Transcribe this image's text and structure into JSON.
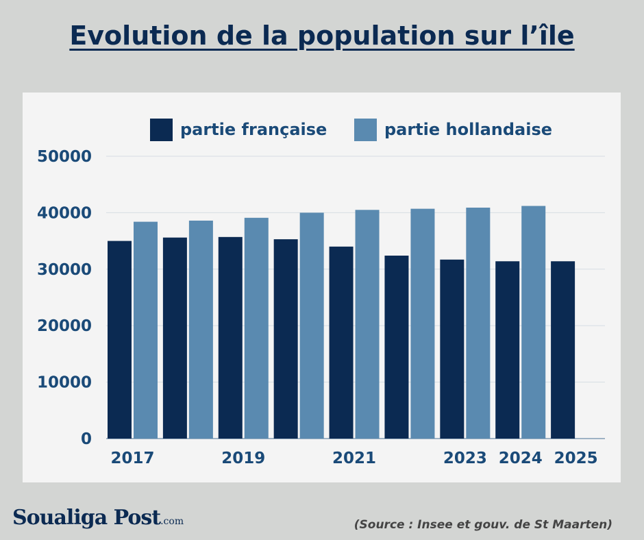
{
  "title": "Evolution de la population sur l’île",
  "source": "(Source : Insee et gouv. de St Maarten)",
  "logo": {
    "main": "Soualiga Post",
    "suffix": ".com"
  },
  "colors": {
    "background": "#d3d5d3",
    "panel": "#f4f4f4",
    "francaise": "#0b2a52",
    "hollandaise": "#5a8ab0",
    "text": "#1a4a78",
    "grid": "#d6dde3"
  },
  "chart_data": {
    "type": "bar",
    "title": "Evolution de la population sur l’île",
    "xlabel": "",
    "ylabel": "",
    "ylim": [
      0,
      50000
    ],
    "y_ticks": [
      0,
      10000,
      20000,
      30000,
      40000,
      50000
    ],
    "grid": true,
    "legend_position": "top",
    "categories": [
      "2017",
      "2018",
      "2019",
      "2020",
      "2021",
      "2022",
      "2023",
      "2024",
      "2025"
    ],
    "x_tick_labels": [
      "2017",
      "",
      "2019",
      "",
      "2021",
      "",
      "2023",
      "2024",
      "2025"
    ],
    "series": [
      {
        "name": "partie française",
        "color": "#0b2a52",
        "values": [
          35000,
          35600,
          35700,
          35300,
          34000,
          32400,
          31700,
          31400,
          31400
        ]
      },
      {
        "name": "partie hollandaise",
        "color": "#5a8ab0",
        "values": [
          38400,
          38600,
          39100,
          40000,
          40500,
          40700,
          40900,
          41200,
          null
        ]
      }
    ]
  }
}
